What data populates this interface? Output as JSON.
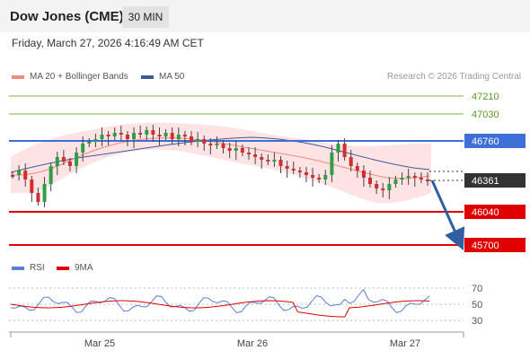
{
  "header": {
    "instrument": "Dow Jones (CME)",
    "interval": "30 MIN"
  },
  "timestamp": "Friday, March 27, 2026 4:16:49 AM CET",
  "legend": {
    "ma20": "MA 20 + Bollinger Bands",
    "ma50": "MA 50",
    "copyright": "Research © 2026 Trading Central"
  },
  "levels": [
    {
      "value": "47210",
      "kind": "resistance-target",
      "color": "#7cb342"
    },
    {
      "value": "47030",
      "kind": "resistance-target",
      "color": "#7cb342"
    },
    {
      "value": "46760",
      "kind": "pivot",
      "color": "#3d6fd6"
    },
    {
      "value": "46361",
      "kind": "last-price",
      "color": "#333333"
    },
    {
      "value": "46040",
      "kind": "support-target",
      "color": "#e00000"
    },
    {
      "value": "45700",
      "kind": "support-target",
      "color": "#e00000"
    }
  ],
  "rsi_legend": {
    "rsi": "RSI",
    "ma9": "9MA"
  },
  "rsi_axis": [
    "70",
    "50",
    "30"
  ],
  "x_axis": [
    "Mar 25",
    "Mar 26",
    "Mar 27"
  ],
  "colors": {
    "up": "#2e9e44",
    "down": "#d62c2c",
    "ma20": "#f28b82",
    "ma50": "#3b5a9a",
    "band": "#fde0e0",
    "rsi": "#5b7fd6",
    "rsi_ma": "#e00000"
  }
}
